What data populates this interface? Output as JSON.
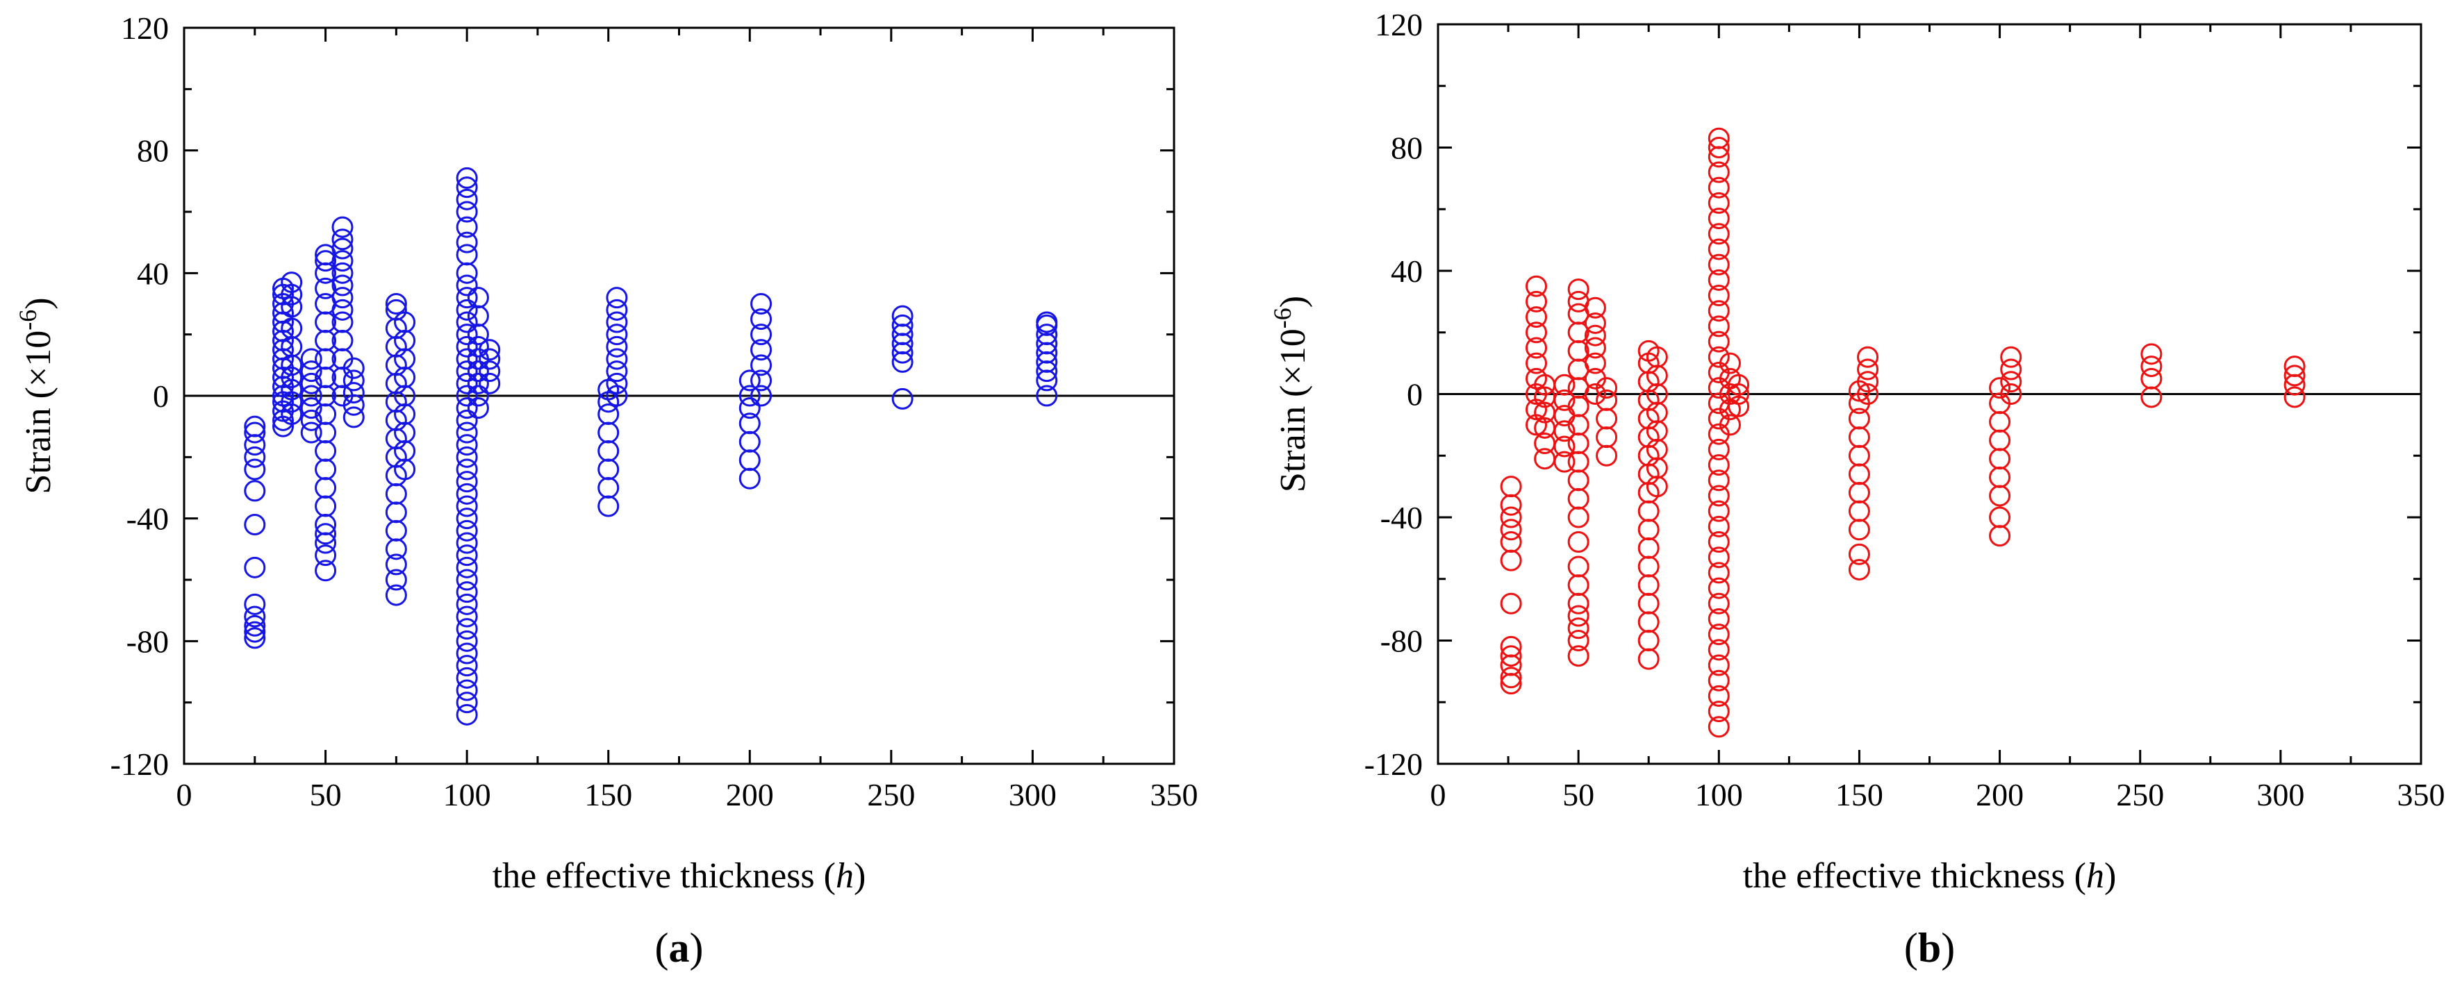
{
  "figure": {
    "background": "#ffffff"
  },
  "chart_data": [
    {
      "id": "a",
      "type": "scatter",
      "panel_label": "a",
      "xlabel": "the effective thickness",
      "xlabel_var": "h",
      "ylabel": "Strain",
      "ylabel_unit": "(×10",
      "ylabel_exp": "-6",
      "ylabel_close": ")",
      "xlim": [
        0,
        350
      ],
      "ylim": [
        -120,
        120
      ],
      "xticks": [
        0,
        50,
        100,
        150,
        200,
        250,
        300,
        350
      ],
      "yticks": [
        -120,
        -80,
        -40,
        0,
        40,
        80,
        120
      ],
      "zero_line": true,
      "marker": "open-circle",
      "color": "#1515e6",
      "series": [
        {
          "x": 25,
          "y": [
            -79,
            -77,
            -75,
            -72,
            -68,
            -56,
            -42,
            -31,
            -24,
            -20,
            -16,
            -12,
            -10
          ]
        },
        {
          "x": 35,
          "y": [
            -10,
            -8,
            -5,
            -2,
            0,
            3,
            6,
            9,
            12,
            15,
            18,
            21,
            24,
            27,
            30,
            33,
            35
          ]
        },
        {
          "x": 38,
          "y": [
            -6,
            -2,
            2,
            6,
            10,
            16,
            22,
            29,
            33,
            37
          ]
        },
        {
          "x": 45,
          "y": [
            -12,
            -8,
            -4,
            0,
            4,
            8,
            12
          ]
        },
        {
          "x": 50,
          "y": [
            -57,
            -52,
            -48,
            -45,
            -42,
            -36,
            -30,
            -24,
            -18,
            -12,
            -6,
            0,
            6,
            12,
            18,
            24,
            30,
            35,
            40,
            44,
            46
          ]
        },
        {
          "x": 56,
          "y": [
            0,
            6,
            12,
            18,
            24,
            28,
            32,
            36,
            40,
            44,
            48,
            51,
            55
          ]
        },
        {
          "x": 60,
          "y": [
            -7,
            -3,
            1,
            5,
            9
          ]
        },
        {
          "x": 75,
          "y": [
            -65,
            -60,
            -55,
            -50,
            -44,
            -38,
            -32,
            -26,
            -20,
            -14,
            -8,
            -2,
            4,
            10,
            16,
            22,
            28,
            30
          ]
        },
        {
          "x": 78,
          "y": [
            -24,
            -18,
            -12,
            -6,
            0,
            6,
            12,
            18,
            24
          ]
        },
        {
          "x": 100,
          "y": [
            -104,
            -100,
            -96,
            -92,
            -88,
            -84,
            -80,
            -76,
            -72,
            -68,
            -64,
            -60,
            -56,
            -52,
            -48,
            -44,
            -40,
            -36,
            -32,
            -28,
            -24,
            -20,
            -16,
            -12,
            -8,
            -4,
            0,
            4,
            8,
            12,
            16,
            20,
            24,
            28,
            32,
            36,
            40,
            46,
            50,
            55,
            60,
            64,
            68,
            71
          ]
        },
        {
          "x": 104,
          "y": [
            -4,
            0,
            4,
            8,
            12,
            16,
            20,
            26,
            32
          ]
        },
        {
          "x": 108,
          "y": [
            4,
            8,
            12,
            15
          ]
        },
        {
          "x": 150,
          "y": [
            -36,
            -30,
            -24,
            -18,
            -12,
            -6,
            -2,
            2
          ]
        },
        {
          "x": 153,
          "y": [
            0,
            4,
            8,
            12,
            16,
            20,
            24,
            28,
            32
          ]
        },
        {
          "x": 200,
          "y": [
            -27,
            -21,
            -15,
            -9,
            -4,
            0,
            5
          ]
        },
        {
          "x": 204,
          "y": [
            0,
            5,
            10,
            15,
            20,
            25,
            30
          ]
        },
        {
          "x": 254,
          "y": [
            -1,
            11,
            14,
            17,
            20,
            23,
            26
          ]
        },
        {
          "x": 305,
          "y": [
            0,
            5,
            8,
            11,
            14,
            17,
            20,
            23,
            24
          ]
        }
      ]
    },
    {
      "id": "b",
      "type": "scatter",
      "panel_label": "b",
      "xlabel": "the effective thickness",
      "xlabel_var": "h",
      "ylabel": "Strain",
      "ylabel_unit": "(×10",
      "ylabel_exp": "-6",
      "ylabel_close": ")",
      "xlim": [
        0,
        350
      ],
      "ylim": [
        -120,
        120
      ],
      "xticks": [
        0,
        50,
        100,
        150,
        200,
        250,
        300,
        350
      ],
      "yticks": [
        -120,
        -80,
        -40,
        0,
        40,
        80,
        120
      ],
      "zero_line": true,
      "marker": "open-circle",
      "color": "#ee1111",
      "series": [
        {
          "x": 26,
          "y": [
            -94,
            -92,
            -88,
            -85,
            -82,
            -68,
            -54,
            -48,
            -44,
            -40,
            -36,
            -30
          ]
        },
        {
          "x": 35,
          "y": [
            -10,
            -5,
            0,
            5,
            10,
            15,
            20,
            25,
            30,
            35
          ]
        },
        {
          "x": 38,
          "y": [
            -21,
            -16,
            -11,
            -6,
            -1,
            3
          ]
        },
        {
          "x": 45,
          "y": [
            -22,
            -17,
            -12,
            -7,
            -2,
            3
          ]
        },
        {
          "x": 50,
          "y": [
            -85,
            -80,
            -76,
            -72,
            -68,
            -62,
            -56,
            -48,
            -40,
            -34,
            -28,
            -22,
            -16,
            -10,
            -4,
            2,
            8,
            14,
            20,
            26,
            30,
            34
          ]
        },
        {
          "x": 56,
          "y": [
            0,
            5,
            10,
            15,
            19,
            23,
            28
          ]
        },
        {
          "x": 60,
          "y": [
            -20,
            -14,
            -8,
            -2,
            2
          ]
        },
        {
          "x": 75,
          "y": [
            -86,
            -80,
            -74,
            -68,
            -62,
            -56,
            -50,
            -44,
            -38,
            -32,
            -26,
            -20,
            -14,
            -8,
            -2,
            4,
            10,
            14
          ]
        },
        {
          "x": 78,
          "y": [
            -30,
            -24,
            -18,
            -12,
            -6,
            0,
            6,
            12
          ]
        },
        {
          "x": 100,
          "y": [
            -108,
            -103,
            -98,
            -93,
            -88,
            -83,
            -78,
            -73,
            -68,
            -63,
            -58,
            -53,
            -48,
            -43,
            -38,
            -33,
            -28,
            -23,
            -18,
            -13,
            -8,
            -3,
            2,
            7,
            12,
            17,
            22,
            27,
            32,
            37,
            42,
            47,
            52,
            57,
            62,
            67,
            72,
            77,
            80,
            83
          ]
        },
        {
          "x": 104,
          "y": [
            -10,
            -5,
            0,
            5,
            10
          ]
        },
        {
          "x": 107,
          "y": [
            -4,
            0,
            3
          ]
        },
        {
          "x": 150,
          "y": [
            -57,
            -52,
            -44,
            -38,
            -32,
            -26,
            -20,
            -14,
            -8,
            -3,
            1
          ]
        },
        {
          "x": 153,
          "y": [
            0,
            4,
            8,
            12
          ]
        },
        {
          "x": 200,
          "y": [
            -46,
            -40,
            -33,
            -27,
            -21,
            -15,
            -9,
            -3,
            2
          ]
        },
        {
          "x": 204,
          "y": [
            0,
            4,
            8,
            12
          ]
        },
        {
          "x": 254,
          "y": [
            -1,
            5,
            9,
            13
          ]
        },
        {
          "x": 305,
          "y": [
            -1,
            3,
            6,
            9
          ]
        }
      ]
    }
  ]
}
